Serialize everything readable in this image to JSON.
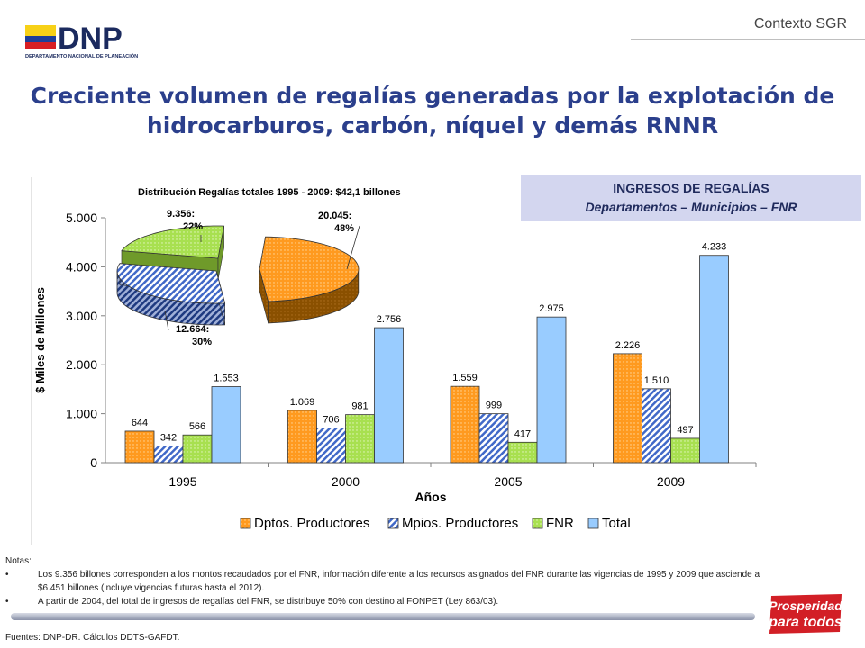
{
  "header": {
    "logo_text": "DNP",
    "logo_subtext": "DEPARTAMENTO NACIONAL DE PLANEACIÓN",
    "section_label": "Contexto SGR"
  },
  "title": {
    "line1": "Creciente volumen de regalías generadas por la explotación de",
    "line2": "hidrocarburos, carbón, níquel y demás RNNR"
  },
  "ingresos_box": {
    "line1": "INGRESOS DE REGALÍAS",
    "line2": "Departamentos – Municipios – FNR"
  },
  "chart_data": [
    {
      "type": "bar",
      "xlabel": "Años",
      "ylabel": "$ Miles de Millones",
      "ylim": [
        0,
        5000
      ],
      "yticks": [
        "0",
        "1.000",
        "2.000",
        "3.000",
        "4.000",
        "5.000"
      ],
      "categories": [
        "1995",
        "2000",
        "2005",
        "2009"
      ],
      "series": [
        {
          "name": "Dptos. Productores",
          "values": [
            644,
            1069,
            1559,
            2226
          ],
          "labels": [
            "644",
            "1.069",
            "1.559",
            "2.226"
          ],
          "color": "#ff9a1f",
          "pattern": "dots"
        },
        {
          "name": "Mpios. Productores",
          "values": [
            342,
            706,
            999,
            1510
          ],
          "labels": [
            "342",
            "706",
            "999",
            "1.510"
          ],
          "color": "#4169c8",
          "pattern": "hatch"
        },
        {
          "name": "FNR",
          "values": [
            566,
            981,
            417,
            497
          ],
          "labels": [
            "566",
            "981",
            "417",
            "497"
          ],
          "color": "#a8e050",
          "pattern": "dots"
        },
        {
          "name": "Total",
          "values": [
            1553,
            2756,
            2975,
            4233
          ],
          "labels": [
            "1.553",
            "2.756",
            "2.975",
            "4.233"
          ],
          "color": "#99ccff",
          "pattern": "solid"
        }
      ],
      "legend": "bottom",
      "grid": false
    },
    {
      "type": "pie",
      "title": "Distribución Regalías totales 1995 - 2009: $42,1 billones",
      "slices": [
        {
          "label_value": "20.045:",
          "label_pct": "48%",
          "value": 20045,
          "color": "#ff9a1f"
        },
        {
          "label_value": "12.664:",
          "label_pct": "30%",
          "value": 12664,
          "color": "#4169c8"
        },
        {
          "label_value": "9.356:",
          "label_pct": "22%",
          "value": 9356,
          "color": "#a8e050"
        }
      ]
    }
  ],
  "notes": {
    "heading": "Notas:",
    "bullet": "•",
    "items": [
      "Los 9.356 billones corresponden a los montos recaudados por el FNR, información diferente a los recursos asignados del FNR durante las vigencias de 1995 y 2009 que asciende a $6.451 billones (incluye vigencias futuras hasta el 2012).",
      "A partir de 2004, del total de ingresos de regalías del FNR, se distribuye 50% con destino al FONPET (Ley 863/03)."
    ]
  },
  "fuentes": "Fuentes: DNP-DR.  Cálculos DDTS-GAFDT.",
  "brand": {
    "line1": "Prosperidad",
    "line2": "para todos"
  }
}
